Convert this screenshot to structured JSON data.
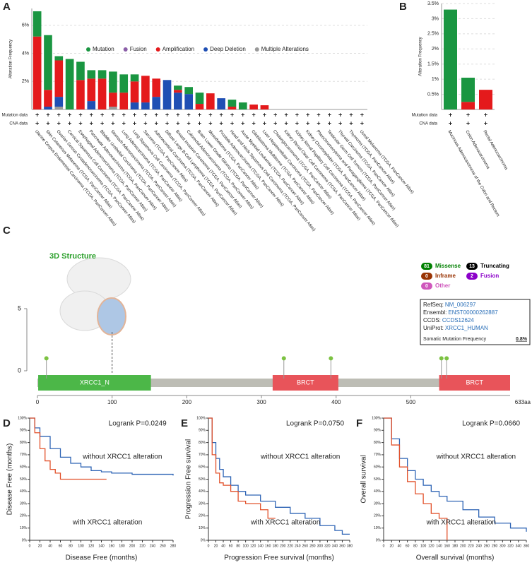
{
  "chart_data": [
    {
      "type": "stacked_bar",
      "panel_label": "A",
      "y_label": "Alteration Frequency",
      "categories": [
        "Uterine Corpus Endometrial Carcinoma (TCGA, PanCancer Atlas)",
        "Skin Cutaneous Melanoma (TCGA, PanCancer Atlas)",
        "Ovarian Serous Cystadenocarcinoma (TCGA, PanCancer Atlas)",
        "Cervical Squamous Cell Carcinoma (TCGA, PanCancer Atlas)",
        "Esophageal Adenocarcinoma (TCGA, PanCancer Atlas)",
        "Pancreatic Adenocarcinoma (TCGA, PanCancer Atlas)",
        "Bladder Urothelial Carcinoma (TCGA, PanCancer Atlas)",
        "Stomach Adenocarcinoma (TCGA, PanCancer Atlas)",
        "Lung Adenocarcinoma (TCGA, PanCancer Atlas)",
        "Lung Squamous Cell Carcinoma (TCGA, PanCancer Atlas)",
        "Sarcoma (TCGA, PanCancer Atlas)",
        "Adrenocortical Carcinoma (TCGA, PanCancer Atlas)",
        "Diffuse Large B-Cell Lymphoma (TCGA, PanCancer Atlas)",
        "Breast Invasive Carcinoma (TCGA, PanCancer Atlas)",
        "Colorectal Adenocarcinoma (TCGA, PanCancer Atlas)",
        "Brain Lower Grade Glioma (TCGA, PanCancer Atlas)",
        "Mesothelioma (TCGA, PanCancer Atlas)",
        "Prostate Adenocarcinoma (TCGA, PanCancer Atlas)",
        "Head and Neck Squamous Cell Carcinoma (TCGA, PanCancer Atlas)",
        "Acute Myeloid Leukemia (TCGA, PanCancer Atlas)",
        "Glioblastoma Multiforme (TCGA, PanCancer Atlas)",
        "Liver Hepatocellular Carcinoma (TCGA, PanCancer Atlas)",
        "Cholangiocarcinoma (TCGA, PanCancer Atlas)",
        "Kidney Renal Clear Cell Carcinoma (TCGA, PanCancer Atlas)",
        "Kidney Renal Papillary Cell Carcinoma (TCGA, PanCancer Atlas)",
        "Kidney Chromophobe (TCGA, PanCancer Atlas)",
        "Pheochromocytoma and Paraganglioma (TCGA, PanCancer Atlas)",
        "Testicular Germ Cell Tumors (TCGA, PanCancer Atlas)",
        "Thyroid Carcinoma (TCGA, PanCancer Atlas)",
        "Thymoma (TCGA, PanCancer Atlas)",
        "Uveal Melanoma (TCGA, PanCancer Atlas)"
      ],
      "series": [
        {
          "name": "Mutation",
          "color": "#1a9641",
          "values": [
            1.8,
            3.9,
            0.3,
            3.6,
            1.3,
            0.6,
            0.6,
            1.5,
            1.3,
            0.5,
            0,
            0,
            0,
            0.3,
            0.5,
            0.8,
            0,
            0,
            0.5,
            0.5,
            0,
            0,
            0,
            0,
            0,
            0,
            0,
            0,
            0,
            0,
            0
          ]
        },
        {
          "name": "Fusion",
          "color": "#8b5fa8",
          "values": [
            0,
            0,
            0,
            0,
            0,
            0,
            0,
            0,
            0,
            0,
            0,
            0,
            0,
            0,
            0,
            0,
            0,
            0,
            0,
            0,
            0,
            0,
            0,
            0,
            0,
            0,
            0,
            0,
            0,
            0,
            0
          ]
        },
        {
          "name": "Amplification",
          "color": "#e41a1c",
          "values": [
            5.2,
            1.2,
            2.6,
            0,
            2.1,
            1.6,
            2.2,
            1.0,
            1.2,
            1.5,
            1.9,
            1.3,
            0,
            0.2,
            0,
            0.4,
            1.15,
            0,
            0.2,
            0,
            0.35,
            0.3,
            0,
            0,
            0,
            0,
            0,
            0,
            0,
            0,
            0
          ]
        },
        {
          "name": "Deep Deletion",
          "color": "#1f4fb4",
          "values": [
            0,
            0.2,
            0.7,
            0,
            0,
            0.6,
            0,
            0,
            0,
            0.5,
            0.5,
            0.9,
            2.1,
            1.2,
            1.1,
            0,
            0,
            0.8,
            0,
            0,
            0,
            0,
            0,
            0,
            0,
            0,
            0,
            0,
            0,
            0,
            0
          ]
        },
        {
          "name": "Multiple Alterations",
          "color": "#999999",
          "values": [
            0,
            0,
            0.2,
            0,
            0,
            0,
            0,
            0.2,
            0,
            0,
            0,
            0,
            0,
            0,
            0,
            0,
            0,
            0,
            0,
            0,
            0,
            0,
            0,
            0,
            0,
            0,
            0,
            0,
            0,
            0,
            0
          ]
        }
      ],
      "ylim": [
        0,
        7.2
      ],
      "yticks": [
        {
          "value": 2,
          "label": "2%"
        },
        {
          "value": 4,
          "label": "4%"
        },
        {
          "value": 6,
          "label": "6%"
        }
      ],
      "grid": true,
      "row_labels": [
        "Mutation data",
        "CNA data"
      ],
      "row_mark": "+"
    },
    {
      "type": "stacked_bar",
      "panel_label": "B",
      "y_label": "Alteration Frequency",
      "categories": [
        "Mucinous Adenocarcinoma of the Colon and Rectum",
        "Colon Adenocarcinoma",
        "Rectal Adenocarcinoma"
      ],
      "series": [
        {
          "color": "#1a9641",
          "values": [
            3.3,
            0.8,
            0
          ]
        },
        {
          "color": "#e41a1c",
          "values": [
            0,
            0.25,
            0.65
          ]
        }
      ],
      "ylim": [
        0,
        3.5
      ],
      "yticks": [
        {
          "value": 0.5,
          "label": "0.5%"
        },
        {
          "value": 1,
          "label": "1%"
        },
        {
          "value": 1.5,
          "label": "1.5%"
        },
        {
          "value": 2,
          "label": "2%"
        },
        {
          "value": 2.5,
          "label": "2.5%"
        },
        {
          "value": 3,
          "label": "3%"
        },
        {
          "value": 3.5,
          "label": "3.5%"
        }
      ],
      "grid": true,
      "row_labels": [
        "Mutation data",
        "CNA data"
      ],
      "row_mark": "+"
    },
    {
      "type": "lollipop",
      "panel_label": "C",
      "structure_label": "3D Structure",
      "x": [
        12,
        330,
        393,
        541,
        548
      ],
      "values": [
        1,
        1,
        1,
        1,
        1
      ],
      "color": "#7cc242",
      "xlim": [
        0,
        633
      ],
      "xticks": [
        0,
        100,
        200,
        300,
        400,
        500
      ],
      "length_label": "633aa",
      "ylim": [
        0,
        5
      ],
      "yticks": [
        0,
        5
      ],
      "domains": [
        {
          "name": "XRCC1_N",
          "start": 1,
          "end": 152,
          "color": "#4cb748"
        },
        {
          "name": "BRCT",
          "start": 315,
          "end": 403,
          "color": "#e8545a"
        },
        {
          "name": "BRCT",
          "start": 538,
          "end": 633,
          "color": "#e8545a"
        }
      ],
      "mutation_types": [
        {
          "count": 81,
          "name": "Missense",
          "color": "#008000"
        },
        {
          "count": 13,
          "name": "Truncating",
          "color": "#000000"
        },
        {
          "count": 0,
          "name": "Inframe",
          "color": "#993404"
        },
        {
          "count": 2,
          "name": "Fusion",
          "color": "#8b00c9"
        },
        {
          "count": 0,
          "name": "Other",
          "color": "#cf58bc"
        }
      ],
      "info": [
        {
          "label": "RefSeq:",
          "value": "NM_006297"
        },
        {
          "label": "Ensembl:",
          "value": "ENST00000262887"
        },
        {
          "label": "CCDS:",
          "value": "CCDS12624"
        },
        {
          "label": "UniProt:",
          "value": "XRCC1_HUMAN"
        }
      ],
      "somatic_label": "Somatic Mutation Frequency",
      "somatic_value": "0.8%"
    },
    {
      "type": "survival",
      "panel_label": "D",
      "p_value_label": "Logrank P=0.0249",
      "x_label": "Disease Free (months)",
      "y_label": "Disease Free (months)",
      "series": [
        {
          "name": "without XRCC1 alteration",
          "color": "#2e64b5",
          "x": [
            0,
            10,
            20,
            40,
            60,
            80,
            100,
            120,
            140,
            160,
            200,
            280
          ],
          "values": [
            100,
            92,
            85,
            75,
            68,
            63,
            60,
            57,
            56,
            55,
            54,
            53
          ]
        },
        {
          "name": "with XRCC1 alteration",
          "color": "#e2502a",
          "x": [
            0,
            10,
            20,
            30,
            40,
            50,
            60,
            150
          ],
          "values": [
            100,
            88,
            75,
            65,
            58,
            55,
            50,
            50
          ]
        }
      ],
      "xlim": [
        0,
        280
      ],
      "xticks": [
        0,
        20,
        40,
        60,
        80,
        100,
        120,
        140,
        160,
        180,
        200,
        220,
        240,
        260,
        280
      ],
      "ylim": [
        0,
        100
      ],
      "yticks": [
        {
          "value": 0,
          "label": "0%"
        },
        {
          "value": 10,
          "label": "10%"
        },
        {
          "value": 20,
          "label": "20%"
        },
        {
          "value": 30,
          "label": "30%"
        },
        {
          "value": 40,
          "label": "40%"
        },
        {
          "value": 50,
          "label": "50%"
        },
        {
          "value": 60,
          "label": "60%"
        },
        {
          "value": 70,
          "label": "70%"
        },
        {
          "value": 80,
          "label": "80%"
        },
        {
          "value": 90,
          "label": "90%"
        },
        {
          "value": 100,
          "label": "100%"
        }
      ]
    },
    {
      "type": "survival",
      "panel_label": "E",
      "p_value_label": "Logrank P=0.0750",
      "x_label": "Progression Free survival (months)",
      "y_label": "Progression Free survival",
      "series": [
        {
          "name": "without XRCC1 alteration",
          "color": "#2e64b5",
          "x": [
            0,
            10,
            20,
            30,
            40,
            60,
            80,
            100,
            140,
            180,
            220,
            260,
            300,
            340,
            360,
            380
          ],
          "values": [
            100,
            80,
            67,
            58,
            52,
            45,
            40,
            37,
            32,
            27,
            22,
            18,
            12,
            8,
            5,
            5
          ]
        },
        {
          "name": "with XRCC1 alteration",
          "color": "#e2502a",
          "x": [
            0,
            10,
            20,
            30,
            40,
            60,
            80,
            100,
            140,
            160,
            180
          ],
          "values": [
            100,
            70,
            55,
            47,
            45,
            40,
            32,
            30,
            25,
            18,
            18
          ]
        }
      ],
      "xlim": [
        0,
        380
      ],
      "xticks": [
        0,
        20,
        40,
        60,
        80,
        100,
        120,
        140,
        160,
        180,
        200,
        220,
        240,
        260,
        280,
        300,
        320,
        340,
        360,
        380
      ],
      "ylim": [
        0,
        100
      ],
      "yticks": [
        {
          "value": 0,
          "label": "0%"
        },
        {
          "value": 10,
          "label": "10%"
        },
        {
          "value": 20,
          "label": "20%"
        },
        {
          "value": 30,
          "label": "30%"
        },
        {
          "value": 40,
          "label": "40%"
        },
        {
          "value": 50,
          "label": "50%"
        },
        {
          "value": 60,
          "label": "60%"
        },
        {
          "value": 70,
          "label": "70%"
        },
        {
          "value": 80,
          "label": "80%"
        },
        {
          "value": 90,
          "label": "90%"
        },
        {
          "value": 100,
          "label": "100%"
        }
      ]
    },
    {
      "type": "survival",
      "panel_label": "F",
      "p_value_label": "Logrank P=0.0660",
      "x_label": "Overall survival (months)",
      "y_label": "Overall survival",
      "series": [
        {
          "name": "without XRCC1 alteration",
          "color": "#2e64b5",
          "x": [
            0,
            20,
            40,
            60,
            80,
            100,
            120,
            140,
            160,
            200,
            240,
            280,
            320,
            360
          ],
          "values": [
            100,
            83,
            67,
            57,
            50,
            45,
            40,
            36,
            32,
            25,
            19,
            14,
            10,
            7
          ]
        },
        {
          "name": "with XRCC1 alteration",
          "color": "#e2502a",
          "x": [
            0,
            20,
            40,
            60,
            80,
            100,
            120,
            140,
            160
          ],
          "values": [
            100,
            78,
            60,
            48,
            38,
            30,
            22,
            18,
            0
          ]
        }
      ],
      "xlim": [
        0,
        360
      ],
      "xticks": [
        0,
        20,
        40,
        60,
        80,
        100,
        120,
        140,
        160,
        180,
        200,
        220,
        240,
        260,
        280,
        300,
        320,
        340,
        360
      ],
      "ylim": [
        0,
        100
      ],
      "yticks": [
        {
          "value": 0,
          "label": "0%"
        },
        {
          "value": 10,
          "label": "10%"
        },
        {
          "value": 20,
          "label": "20%"
        },
        {
          "value": 30,
          "label": "30%"
        },
        {
          "value": 40,
          "label": "40%"
        },
        {
          "value": 50,
          "label": "50%"
        },
        {
          "value": 60,
          "label": "60%"
        },
        {
          "value": 70,
          "label": "70%"
        },
        {
          "value": 80,
          "label": "80%"
        },
        {
          "value": 90,
          "label": "90%"
        },
        {
          "value": 100,
          "label": "100%"
        }
      ]
    }
  ]
}
